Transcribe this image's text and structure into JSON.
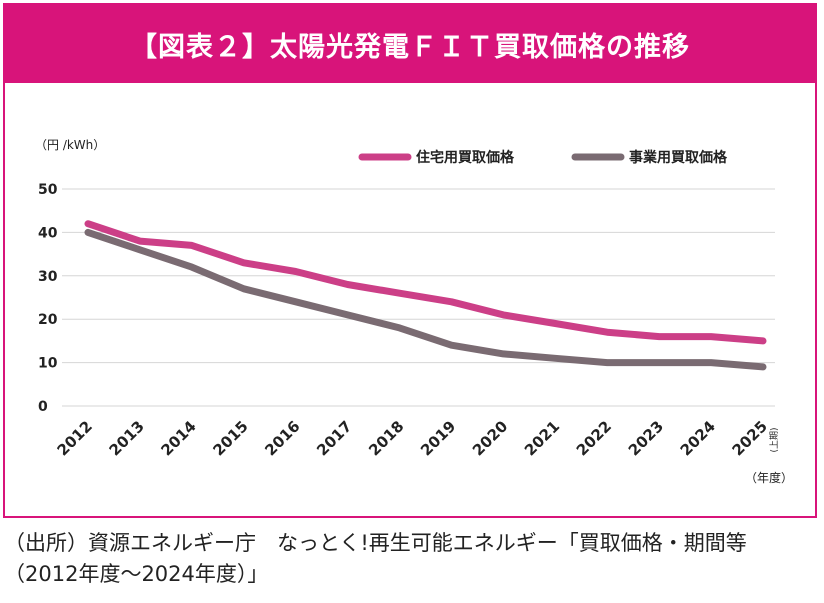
{
  "header": {
    "title": "【図表２】太陽光発電ＦＩＴ買取価格の推移"
  },
  "source_note": "（出所）資源エネルギー庁　なっとく!再生可能エネルギー「買取価格・期間等（2012年度〜2024年度）」",
  "colors": {
    "brand": "#d8147a",
    "residential": "#cc3f87",
    "business": "#7a6b72",
    "grid": "#d6d6d6"
  },
  "chart_data": {
    "type": "line",
    "unit_label": "（円 /kWh）",
    "x_unit_label": "（年度）",
    "x": [
      "2012",
      "2013",
      "2014",
      "2015",
      "2016",
      "2017",
      "2018",
      "2019",
      "2020",
      "2021",
      "2022",
      "2023",
      "2024",
      "2025"
    ],
    "x_last_suffix": "(上期)",
    "ylim": [
      0,
      50
    ],
    "yticks": [
      0,
      10,
      20,
      30,
      40,
      50
    ],
    "grid": true,
    "legend_position": "top-right",
    "series": [
      {
        "name": "住宅用買取価格",
        "color": "#cc3f87",
        "values": [
          42,
          38,
          37,
          33,
          31,
          28,
          26,
          24,
          21,
          19,
          17,
          16,
          16,
          15
        ]
      },
      {
        "name": "事業用買取価格",
        "color": "#7a6b72",
        "values": [
          40,
          36,
          32,
          27,
          24,
          21,
          18,
          14,
          12,
          11,
          10,
          10,
          10,
          9
        ]
      }
    ]
  }
}
